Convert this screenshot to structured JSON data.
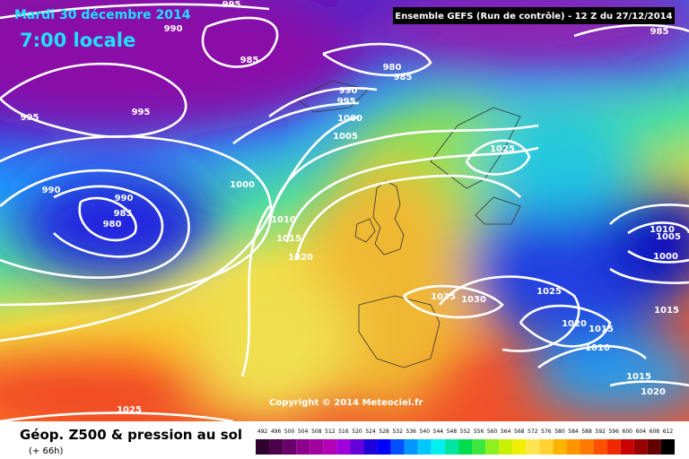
{
  "header": {
    "date": "Mardi 30 décembre 2014",
    "time": "7:00 locale",
    "run_info": "Ensemble GEFS  (Run de contrôle)  -  12 Z du 27/12/2014"
  },
  "copyright": "Copyright © 2014 Meteociel.fr",
  "legend": {
    "title": "Géop. Z500 & pression au sol",
    "subtitle": "(+ 66h)",
    "values": [
      492,
      496,
      500,
      504,
      508,
      512,
      516,
      520,
      524,
      528,
      532,
      536,
      540,
      544,
      548,
      552,
      556,
      560,
      564,
      568,
      572,
      576,
      580,
      584,
      588,
      592,
      596,
      600,
      604,
      608,
      612
    ],
    "colors": [
      "#2d002d",
      "#4b004b",
      "#690069",
      "#8c008c",
      "#a000a0",
      "#b400b4",
      "#a000dc",
      "#6400dc",
      "#1e00dc",
      "#0000ff",
      "#0050ff",
      "#0096ff",
      "#00c8ff",
      "#00f0f0",
      "#00e6a0",
      "#00dc50",
      "#3ce63c",
      "#8cf01e",
      "#c8f000",
      "#f0f000",
      "#ffe650",
      "#ffd232",
      "#ffb400",
      "#ff9600",
      "#ff7800",
      "#ff5000",
      "#f02800",
      "#c80000",
      "#960000",
      "#640000",
      "#000000"
    ]
  },
  "isobar_labels": [
    995,
    990,
    985,
    995,
    995,
    990,
    990,
    985,
    980,
    980,
    985,
    990,
    995,
    1000,
    1005,
    1000,
    1010,
    1015,
    1020,
    1025,
    1035,
    1030,
    1025,
    1020,
    1015,
    1010,
    1015,
    1010,
    1005,
    1000,
    1015,
    1020,
    1025,
    985
  ]
}
